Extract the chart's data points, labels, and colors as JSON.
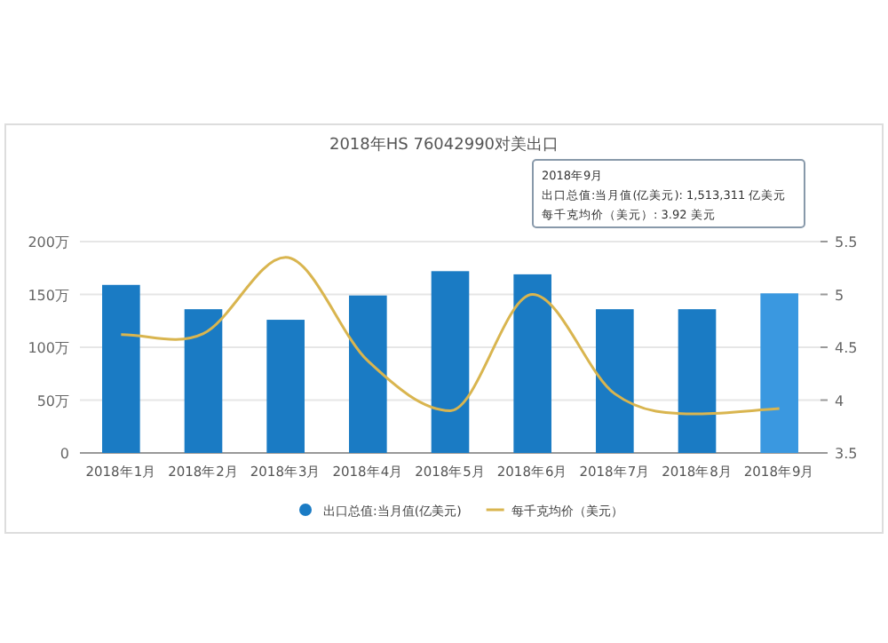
{
  "chart_data": {
    "type": "bar",
    "title": "2018年HS 76042990对美出口",
    "categories": [
      "2018年1月",
      "2018年2月",
      "2018年3月",
      "2018年4月",
      "2018年5月",
      "2018年6月",
      "2018年7月",
      "2018年8月",
      "2018年9月"
    ],
    "series": [
      {
        "name": "出口总值:当月值(亿美元)",
        "color": "#1a7bc4",
        "colors": [
          "#1a7bc4",
          "#1a7bc4",
          "#1a7bc4",
          "#1a7bc4",
          "#1a7bc4",
          "#1a7bc4",
          "#1a7bc4",
          "#1a7bc4",
          "#3a98e0"
        ],
        "values": [
          159,
          136,
          126,
          149,
          172,
          169,
          136,
          136,
          151
        ]
      },
      {
        "name": "每千克均价（美元）",
        "type": "line",
        "axis": "y2",
        "color": "#d9b54f",
        "values": [
          4.62,
          4.63,
          5.35,
          4.37,
          3.9,
          5.0,
          4.06,
          3.87,
          3.92
        ]
      }
    ],
    "ylim": [
      0,
      200
    ],
    "yticks": [
      0,
      {
        "value": 50,
        "label": "50万"
      },
      {
        "value": 100,
        "label": "100万"
      },
      {
        "value": 150,
        "label": "150万"
      },
      {
        "value": 200,
        "label": "200万"
      }
    ],
    "y2lim": [
      3.5,
      5.5
    ],
    "y2ticks": [
      3.5,
      4,
      4.5,
      5,
      5.5
    ],
    "grid": "y",
    "legend": "bottom",
    "annotations": [
      "2018年9月",
      "出口总值:当月值(亿美元): 1,513,311 亿美元",
      "每千克均价（美元）: 3.92 美元"
    ]
  }
}
